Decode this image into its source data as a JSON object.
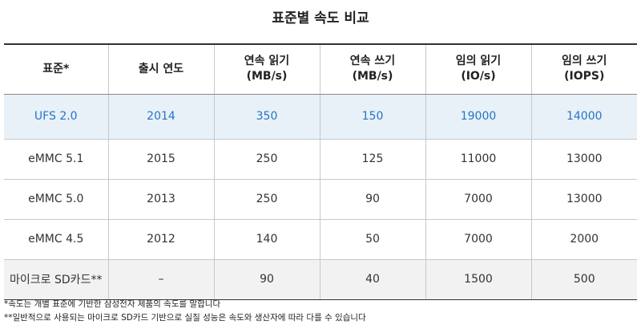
{
  "title": "표준별 속도 비교",
  "headers": [
    [
      "표준*"
    ],
    [
      "출시 연도"
    ],
    [
      "연속 읽기",
      "(MB/s)"
    ],
    [
      "연속 쓰기",
      "(MB/s)"
    ],
    [
      "임의 읽기",
      "(IO/s)"
    ],
    [
      "임의 쓰기",
      "(IOPS)"
    ]
  ],
  "rows": [
    [
      "UFS 2.0",
      "2014",
      "350",
      "150",
      "19000",
      "14000"
    ],
    [
      "eMMC 5.1",
      "2015",
      "250",
      "125",
      "11000",
      "13000"
    ],
    [
      "eMMC 5.0",
      "2013",
      "250",
      "90",
      "7000",
      "13000"
    ],
    [
      "eMMC 4.5",
      "2012",
      "140",
      "50",
      "7000",
      "2000"
    ],
    [
      "마이크로 SD카드**",
      "–",
      "90",
      "40",
      "1500",
      "500"
    ]
  ],
  "highlight_color": "#2576c6",
  "highlight_bg": "#e8f0f8",
  "notes": [
    "*속도는 개별 표준에 기반한 삼성전자 제품의 속도를 말합니다",
    "**일반적으로 사용되는 마이크로 SD카드 기반으로 실질 성능은 속도와 생산자에 따라 다를 수 있습니다"
  ]
}
